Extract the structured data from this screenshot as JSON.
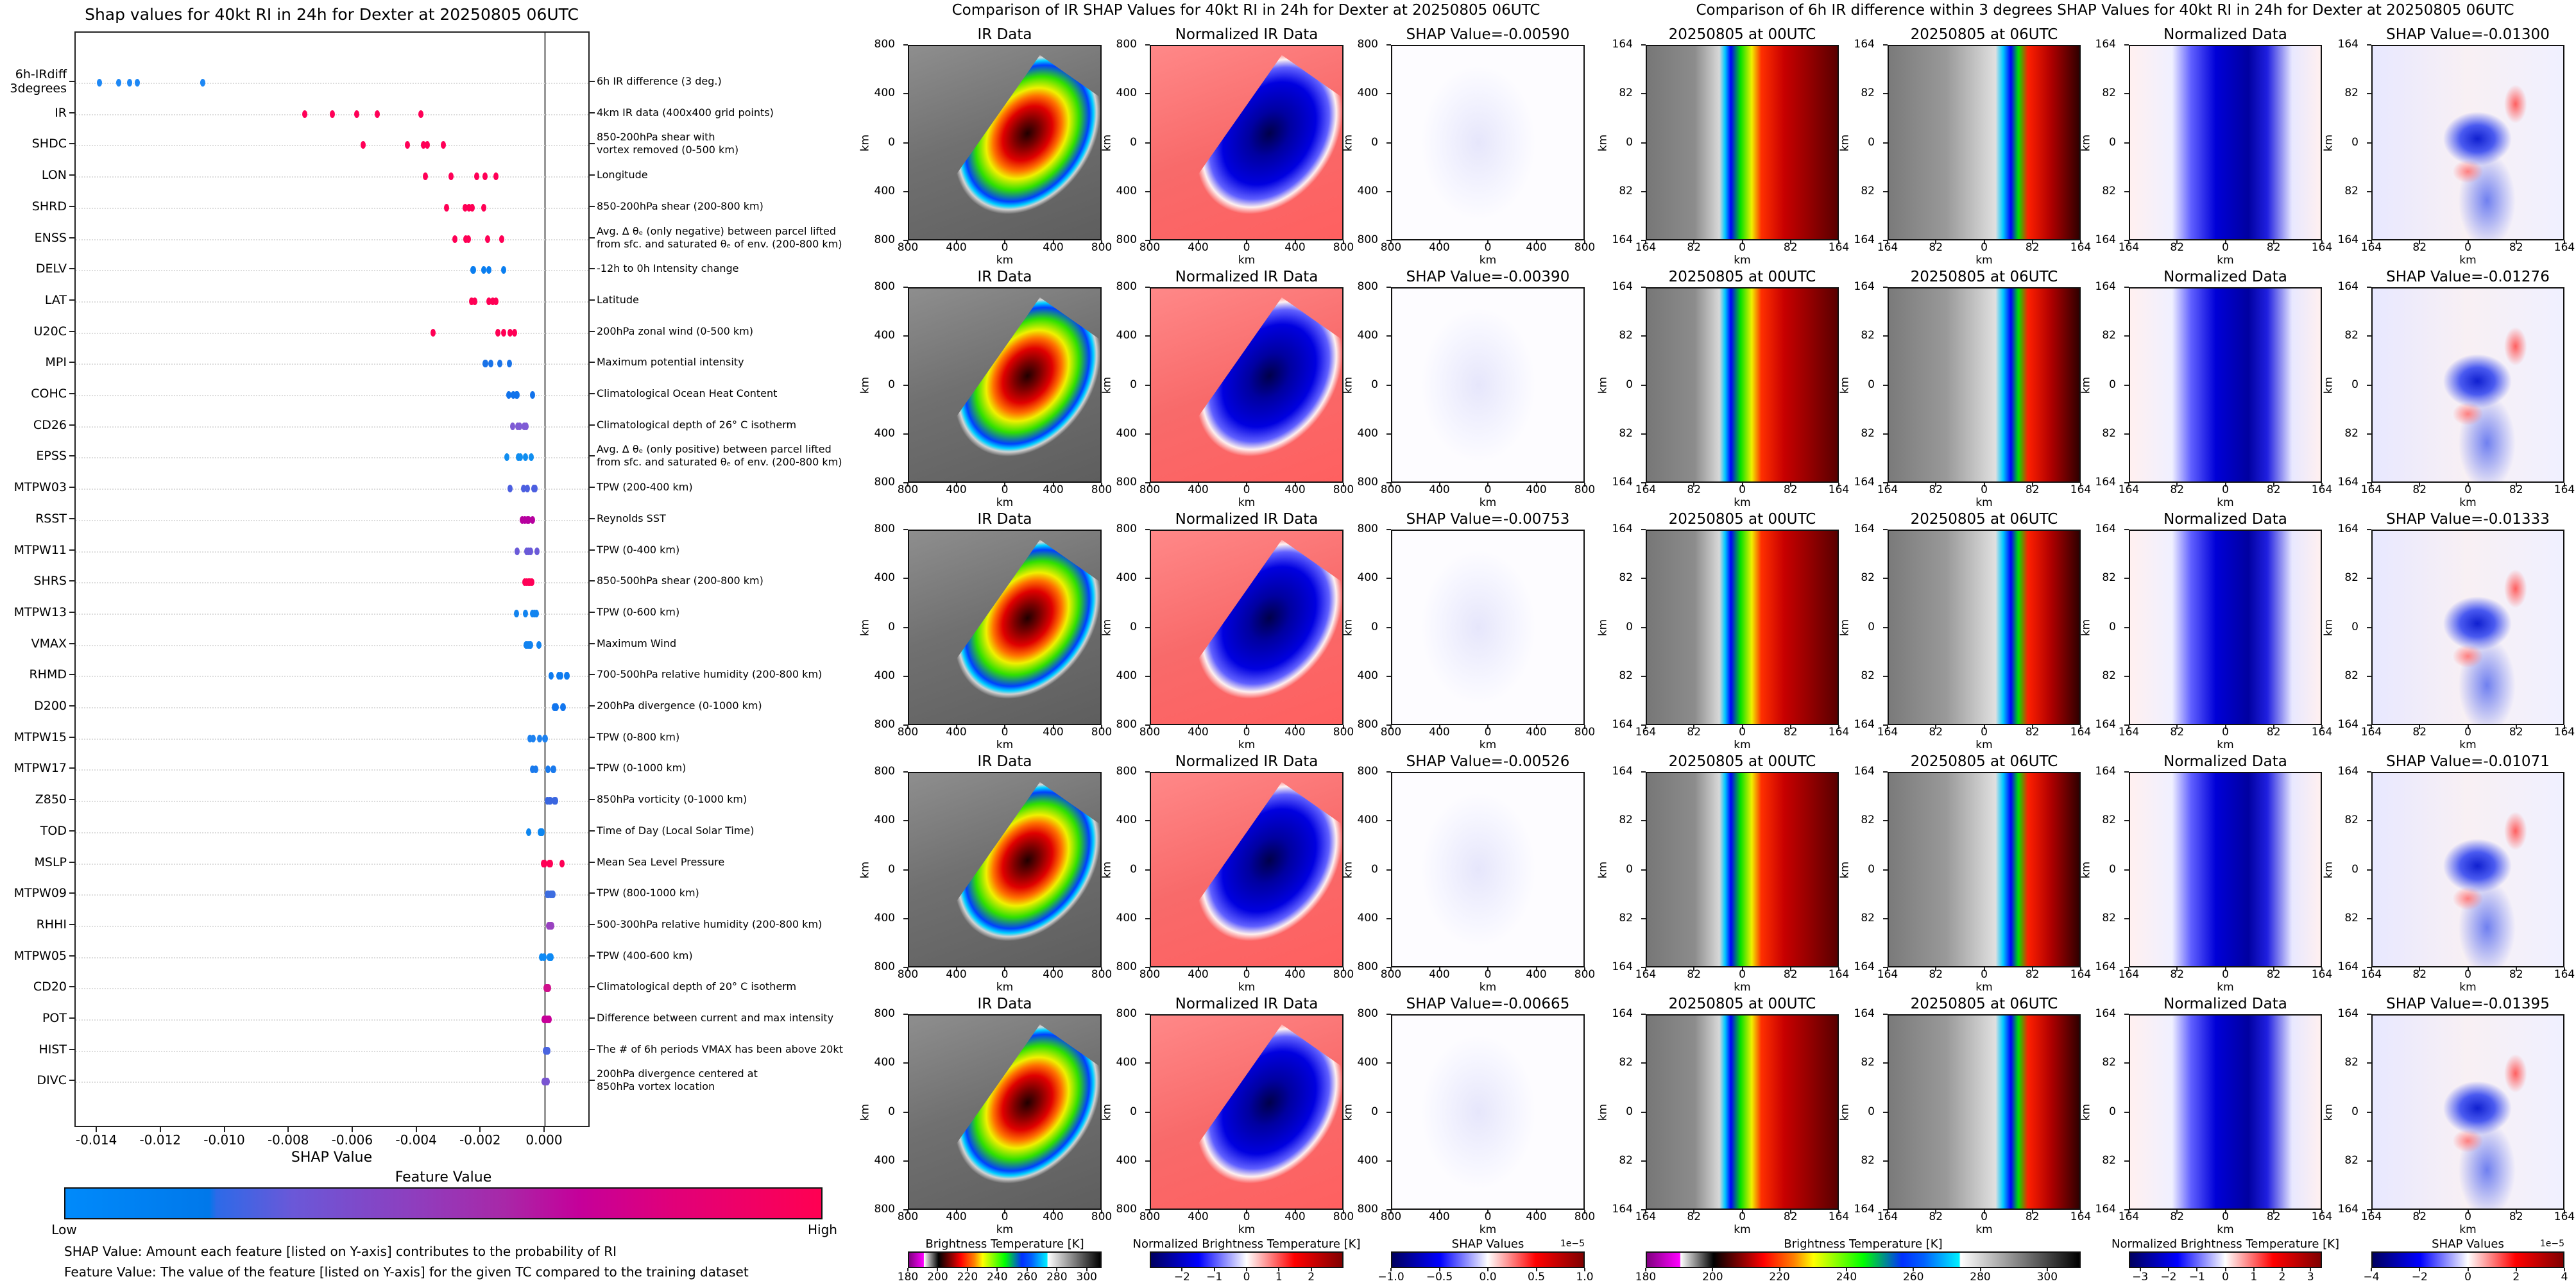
{
  "left": {
    "title": "Shap values for 40kt RI in 24h for Dexter at 20250805 06UTC",
    "xlabel": "SHAP Value",
    "colorbar_title": "Feature Value",
    "colorbar_low": "Low",
    "colorbar_high": "High",
    "colorbar_colors": [
      "#008afb",
      "#ff0052"
    ],
    "note1": "SHAP Value: Amount each feature [listed on Y-axis] contributes to the probability of RI",
    "note2": "Feature Value: The value of the feature [listed on Y-axis] for the given TC compared to the training dataset"
  },
  "chart_data": {
    "type": "scatter",
    "title": "Shap values for 40kt RI in 24h for Dexter at 20250805 06UTC",
    "xlabel": "SHAP Value",
    "xlim": [
      -0.0147,
      0.0012
    ],
    "xticks": [
      "-0.014",
      "-0.012",
      "-0.010",
      "-0.008",
      "-0.006",
      "-0.004",
      "-0.002",
      "0.000"
    ],
    "xtick_values": [
      -0.014,
      -0.012,
      -0.01,
      -0.008,
      -0.006,
      -0.004,
      -0.002,
      0.0
    ],
    "grid": "horizontal dotted",
    "features": [
      {
        "name": "6h-IRdiff\n3degrees",
        "desc": "6h IR difference (3 deg.)",
        "color": "#1e88f5",
        "values": [
          -0.01395,
          -0.01333,
          -0.013,
          -0.01276,
          -0.01071
        ]
      },
      {
        "name": "IR",
        "desc": "4km IR data (400x400 grid points)",
        "color": "#ff0057",
        "values": [
          -0.00753,
          -0.00665,
          -0.0059,
          -0.00526,
          -0.0039
        ]
      },
      {
        "name": "SHDC",
        "desc": "850-200hPa shear with\nvortex removed (0-500 km)",
        "color": "#ff0057",
        "values": [
          -0.0057,
          -0.00431,
          -0.00382,
          -0.00369,
          -0.00319
        ]
      },
      {
        "name": "LON",
        "desc": "Longitude",
        "color": "#ff0057",
        "values": [
          -0.00376,
          -0.00295,
          -0.00215,
          -0.00188,
          -0.00155
        ]
      },
      {
        "name": "SHRD",
        "desc": "850-200hPa shear (200-800 km)",
        "color": "#ff0055",
        "values": [
          -0.00308,
          -0.0025,
          -0.00239,
          -0.00229,
          -0.00193
        ]
      },
      {
        "name": "ENSS",
        "desc": "Avg. Δ θₑ (only negative) between parcel lifted\nfrom sfc. and saturated θₑ of env. (200-800 km)",
        "color": "#ff0055",
        "values": [
          -0.00283,
          -0.00248,
          -0.00241,
          -0.00181,
          -0.00136
        ]
      },
      {
        "name": "DELV",
        "desc": "-12h to 0h Intensity change",
        "color": "#0a7ef0",
        "values": [
          -0.00226,
          -0.00224,
          -0.00193,
          -0.00177,
          -0.00131
        ]
      },
      {
        "name": "LAT",
        "desc": "Latitude",
        "color": "#ff0055",
        "values": [
          -0.00231,
          -0.0022,
          -0.00176,
          -0.00165,
          -0.00155
        ]
      },
      {
        "name": "U20C",
        "desc": "200hPa zonal wind (0-500 km)",
        "color": "#ff0055",
        "values": [
          -0.00351,
          -0.00148,
          -0.00131,
          -0.0011,
          -0.00096
        ]
      },
      {
        "name": "MPI",
        "desc": "Maximum potential intensity",
        "color": "#1a73e8",
        "values": [
          -0.00189,
          -0.00186,
          -0.00171,
          -0.00143,
          -0.00112
        ]
      },
      {
        "name": "COHC",
        "desc": "Climatological Ocean Heat Content",
        "color": "#1273eb",
        "values": [
          -0.00114,
          -0.001,
          -0.00091,
          -0.00088,
          -0.0004
        ]
      },
      {
        "name": "CD26",
        "desc": "Climatological depth of 26° C isotherm",
        "color": "#7f5bd5",
        "values": [
          -0.00103,
          -0.00086,
          -0.00081,
          -0.00067,
          -0.0006
        ]
      },
      {
        "name": "EPSS",
        "desc": "Avg. Δ θₑ (only positive) between parcel lifted\nfrom sfc. and saturated θₑ of env. (200-800 km)",
        "color": "#108ef0",
        "values": [
          -0.00121,
          -0.00084,
          -0.00078,
          -0.00062,
          -0.00045
        ]
      },
      {
        "name": "MTPW03",
        "desc": "TPW (200-400 km)",
        "color": "#4c5fe0",
        "values": [
          -0.0011,
          -0.00069,
          -0.00057,
          -0.00036,
          -0.00033
        ]
      },
      {
        "name": "RSST",
        "desc": "Reynolds SST",
        "color": "#b7009f",
        "values": [
          -0.00072,
          -0.00065,
          -0.00057,
          -0.00052,
          -0.0004
        ]
      },
      {
        "name": "MTPW11",
        "desc": "TPW (0-400 km)",
        "color": "#6a5ad8",
        "values": [
          -0.00088,
          -0.00059,
          -0.00052,
          -0.00047,
          -0.00026
        ]
      },
      {
        "name": "SHRS",
        "desc": "850-500hPa shear (200-800 km)",
        "color": "#ff0057",
        "values": [
          -0.00064,
          -0.00059,
          -0.00053,
          -0.00048,
          -0.00043
        ]
      },
      {
        "name": "MTPW13",
        "desc": "TPW (0-600 km)",
        "color": "#1284f0",
        "values": [
          -0.0009,
          -0.00062,
          -0.00041,
          -0.00034,
          -0.00028
        ]
      },
      {
        "name": "VMAX",
        "desc": "Maximum Wind",
        "color": "#1283f0",
        "values": [
          -0.0006,
          -0.00055,
          -0.00048,
          -0.00047,
          -0.00021
        ]
      },
      {
        "name": "RHMD",
        "desc": "700-500hPa relative humidity (200-800 km)",
        "color": "#0f7cf0",
        "values": [
          0.00019,
          0.00043,
          0.00048,
          0.00067,
          0.00069
        ]
      },
      {
        "name": "D200",
        "desc": "200hPa divergence (0-1000 km)",
        "color": "#1276ee",
        "values": [
          0.00028,
          0.00033,
          0.00034,
          0.00055,
          0.00057
        ]
      },
      {
        "name": "MTPW15",
        "desc": "TPW (0-800 km)",
        "color": "#1e82f0",
        "values": [
          -0.00048,
          -0.00038,
          -0.00019,
          -2e-05,
          0.0
        ]
      },
      {
        "name": "MTPW17",
        "desc": "TPW (0-1000 km)",
        "color": "#1a7aed",
        "values": [
          -0.00041,
          -0.00031,
          9e-05,
          0.00024,
          0.00026
        ]
      },
      {
        "name": "Z850",
        "desc": "850hPa vorticity (0-1000 km)",
        "color": "#3a66e0",
        "values": [
          7e-05,
          0.00012,
          0.00017,
          0.00028,
          0.00033
        ]
      },
      {
        "name": "TOD",
        "desc": "Time of Day (Local Solar Time)",
        "color": "#0d86f0",
        "values": [
          -0.00052,
          -0.00016,
          -0.00014,
          -0.00012,
          -0.0001
        ]
      },
      {
        "name": "MSLP",
        "desc": "Mean Sea Level Pressure",
        "color": "#ff0055",
        "values": [
          -7e-05,
          -2e-05,
          0.00012,
          0.00017,
          0.00052
        ]
      },
      {
        "name": "MTPW09",
        "desc": "TPW (800-1000 km)",
        "color": "#3d6de0",
        "values": [
          7e-05,
          0.0001,
          0.00016,
          0.00021,
          0.00024
        ]
      },
      {
        "name": "RHHI",
        "desc": "500-300hPa relative humidity (200-800 km)",
        "color": "#9942c0",
        "values": [
          0.0001,
          0.00014,
          0.00017,
          0.00019,
          0.00021
        ]
      },
      {
        "name": "MTPW05",
        "desc": "TPW (400-600 km)",
        "color": "#0e8af5",
        "values": [
          -0.00012,
          -5e-05,
          0.00012,
          0.00016,
          0.00019
        ]
      },
      {
        "name": "CD20",
        "desc": "Climatological depth of 20° C isotherm",
        "color": "#d0108c",
        "values": [
          3e-05,
          5e-05,
          7e-05,
          9e-05,
          0.0001
        ]
      },
      {
        "name": "POT",
        "desc": "Difference between current and max intensity",
        "color": "#c8009a",
        "values": [
          -5e-05,
          0.0,
          3e-05,
          9e-05,
          0.00012
        ]
      },
      {
        "name": "HIST",
        "desc": "The # of 6h periods VMAX has been above 20kt",
        "color": "#4a64e0",
        "values": [
          0.0,
          3e-05,
          5e-05,
          7e-05,
          9e-05
        ]
      },
      {
        "name": "DIVC",
        "desc": "200hPa divergence centered at\n850hPa vortex location",
        "color": "#7a55d2",
        "values": [
          -5e-05,
          -2e-05,
          2e-05,
          5e-05,
          7e-05
        ]
      }
    ]
  },
  "ir_section": {
    "title": "Comparison of IR SHAP Values for 40kt RI in 24h for Dexter at 20250805 06UTC",
    "panel_titles": [
      "IR Data",
      "Normalized IR Data"
    ],
    "shap_titles": [
      "SHAP Value=-0.00590",
      "SHAP Value=-0.00390",
      "SHAP Value=-0.00753",
      "SHAP Value=-0.00526",
      "SHAP Value=-0.00665"
    ],
    "ticks": [
      "800",
      "400",
      "0",
      "400",
      "800"
    ],
    "axis_label": "km",
    "colorbars": [
      {
        "label": "Brightness Temperature [K]",
        "range": [
          180,
          310
        ],
        "ticks": [
          "180",
          "200",
          "220",
          "240",
          "260",
          "280",
          "300"
        ],
        "tick_values": [
          180,
          200,
          220,
          240,
          260,
          280,
          300
        ],
        "kind": "bt"
      },
      {
        "label": "Normalized Brightness Temperature [K]",
        "range": [
          -3,
          3
        ],
        "ticks": [
          "−2",
          "−1",
          "0",
          "1",
          "2"
        ],
        "tick_values": [
          -2,
          -1,
          0,
          1,
          2
        ],
        "kind": "div"
      },
      {
        "label": "SHAP Values",
        "range": [
          -1.0,
          1.0
        ],
        "ticks": [
          "−1.0",
          "−0.5",
          "0.0",
          "0.5",
          "1.0"
        ],
        "tick_values": [
          -1,
          -0.5,
          0,
          0.5,
          1
        ],
        "kind": "div",
        "multiplier": "1e−5"
      }
    ]
  },
  "diff_section": {
    "title": "Comparison of 6h IR difference within 3 degrees SHAP Values for 40kt RI in 24h for Dexter at 20250805 06UTC",
    "panel_titles": [
      "20250805 at 00UTC",
      "20250805 at 06UTC",
      "Normalized Data"
    ],
    "shap_titles": [
      "SHAP Value=-0.01300",
      "SHAP Value=-0.01276",
      "SHAP Value=-0.01333",
      "SHAP Value=-0.01071",
      "SHAP Value=-0.01395"
    ],
    "ticks": [
      "164",
      "82",
      "0",
      "82",
      "164"
    ],
    "axis_label": "km",
    "colorbars": [
      {
        "label": "Brightness Temperature [K]",
        "range": [
          180,
          310
        ],
        "ticks": [
          "180",
          "200",
          "220",
          "240",
          "260",
          "280",
          "300"
        ],
        "tick_values": [
          180,
          200,
          220,
          240,
          260,
          280,
          300
        ],
        "kind": "bt"
      },
      {
        "label": "Normalized Brightness Temperature [K]",
        "range": [
          -3.4,
          3.4
        ],
        "ticks": [
          "−3",
          "−2",
          "−1",
          "0",
          "1",
          "2",
          "3"
        ],
        "tick_values": [
          -3,
          -2,
          -1,
          0,
          1,
          2,
          3
        ],
        "kind": "div"
      },
      {
        "label": "SHAP Values",
        "range": [
          -4,
          4
        ],
        "ticks": [
          "−4",
          "−2",
          "0",
          "2",
          "4"
        ],
        "tick_values": [
          -4,
          -2,
          0,
          2,
          4
        ],
        "kind": "div",
        "multiplier": "1e−5"
      }
    ]
  }
}
